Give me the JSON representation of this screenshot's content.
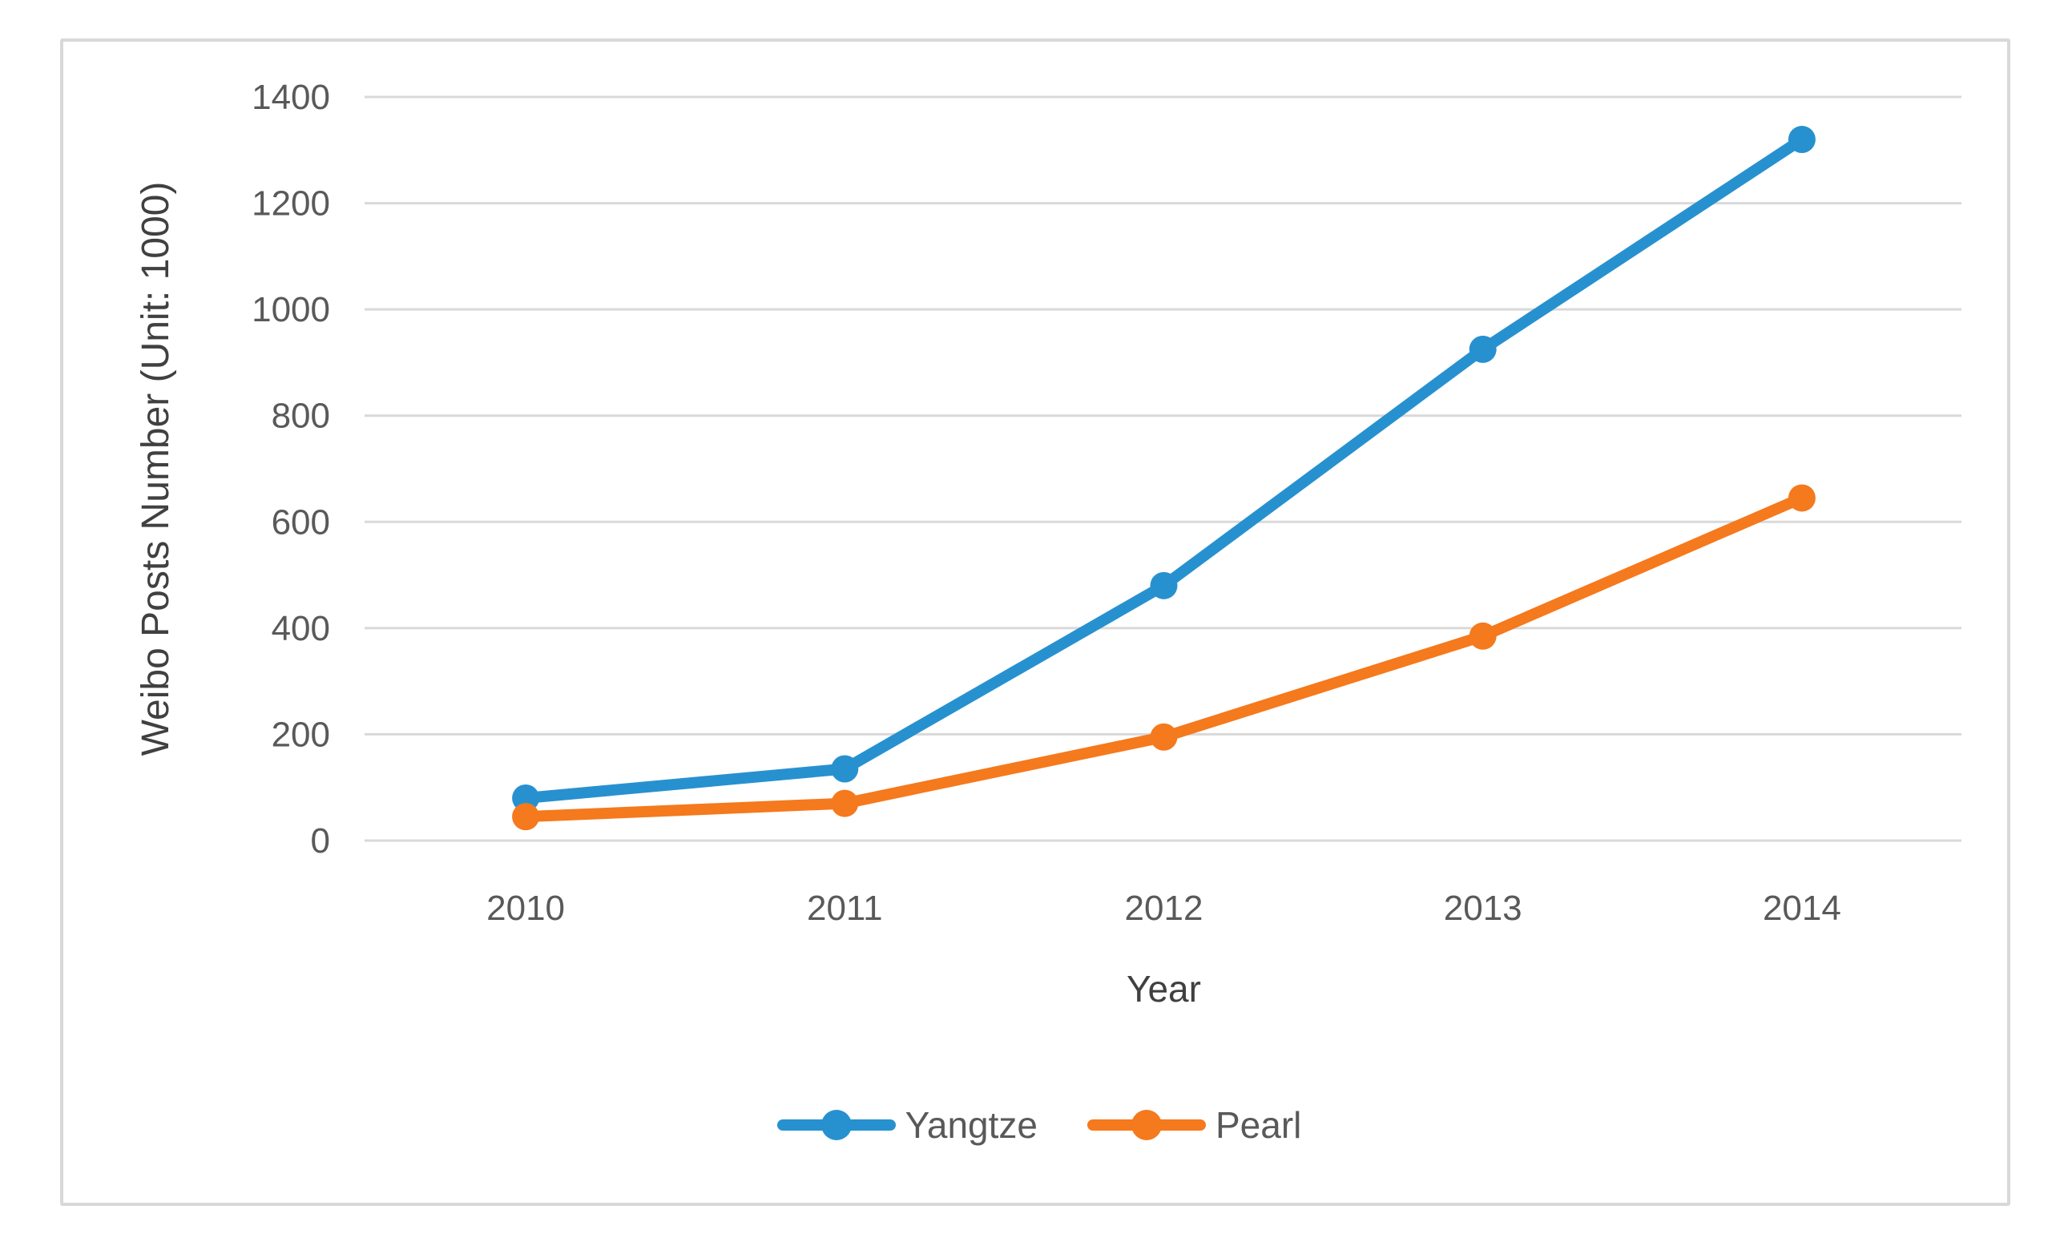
{
  "chart_data": {
    "type": "line",
    "title": "",
    "categories": [
      "2010",
      "2011",
      "2012",
      "2013",
      "2014"
    ],
    "series": [
      {
        "name": "Yangtze",
        "color": "#2791D0",
        "values": [
          80,
          135,
          480,
          925,
          1320
        ]
      },
      {
        "name": "Pearl",
        "color": "#F5791D",
        "values": [
          45,
          70,
          195,
          385,
          645
        ]
      }
    ],
    "xlabel": "Year",
    "ylabel": "Weibo Posts Number (Unit: 1000)",
    "ylim": [
      0,
      1400
    ],
    "yticks": [
      0,
      200,
      400,
      600,
      800,
      1000,
      1200,
      1400
    ],
    "grid": "horizontal-only",
    "legend_position": "bottom",
    "marker": "circle"
  },
  "styles": {
    "background": "#FFFFFF",
    "frame_border_color": "#D8D8D8",
    "grid_color": "#D9D9D9",
    "tick_label_color": "#595959",
    "axis_title_color": "#404040",
    "legend_text_color": "#595959"
  }
}
